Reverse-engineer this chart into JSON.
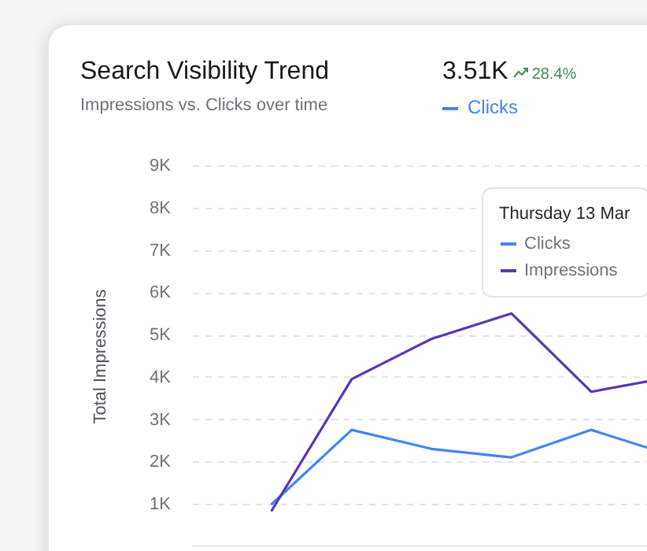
{
  "chart_data": {
    "type": "line",
    "title": "Search Visibility Trend",
    "subtitle": "Impressions vs. Clicks over time",
    "ylabel": "Total Impressions",
    "legend_title": "Thursday 13 Mar",
    "annotations": [
      "3.51K",
      "28.4%"
    ],
    "categories": [
      null,
      null,
      null,
      null,
      null,
      null
    ],
    "series": [
      {
        "name": "Clicks",
        "color": "#4285f4",
        "values": [
          1000,
          2750,
          2300,
          2100,
          2750,
          2150
        ]
      },
      {
        "name": "Impressions",
        "color": "#5b34b5",
        "values": [
          850,
          3950,
          4900,
          5500,
          3650,
          4000
        ]
      }
    ],
    "ylim": [
      0,
      9000
    ],
    "yticks": [
      {
        "value": 1000,
        "label": "1K"
      },
      {
        "value": 2000,
        "label": "2K"
      },
      {
        "value": 3000,
        "label": "3K"
      },
      {
        "value": 4000,
        "label": "4K"
      },
      {
        "value": 5000,
        "label": "5K"
      },
      {
        "value": 6000,
        "label": "6K"
      },
      {
        "value": 7000,
        "label": "7K"
      },
      {
        "value": 8000,
        "label": "8K"
      },
      {
        "value": 9000,
        "label": "9K"
      }
    ],
    "grid": "y",
    "legend": "top right",
    "tick_labels": "y",
    "line_style": "solid"
  }
}
